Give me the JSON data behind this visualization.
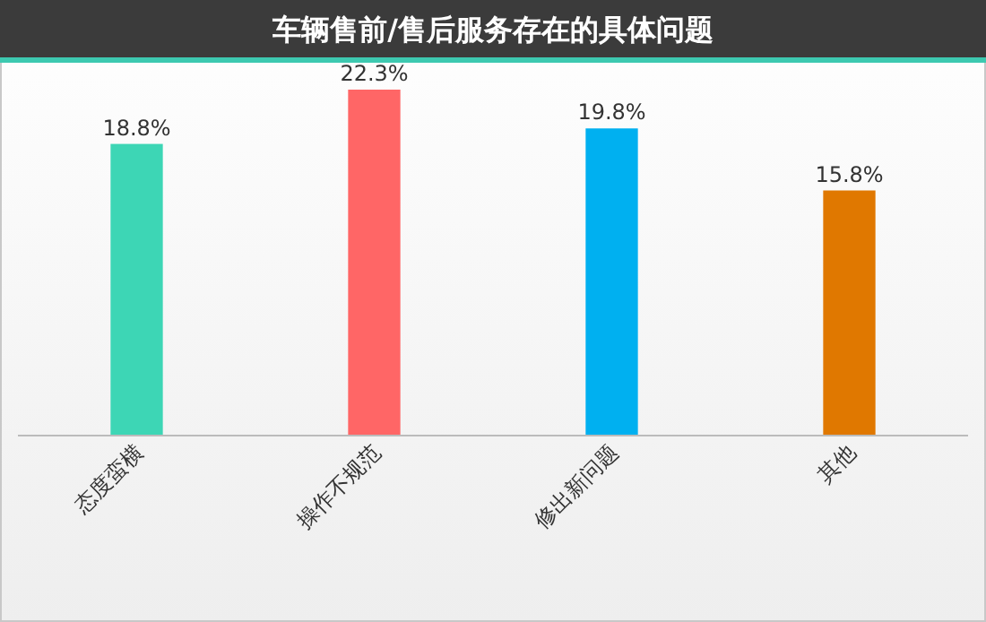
{
  "chart_data": {
    "type": "bar",
    "title": "车辆售前/售后服务存在的具体问题",
    "categories": [
      "态度蛮横",
      "操作不规范",
      "修出新问题",
      "其他"
    ],
    "values": [
      18.8,
      22.3,
      19.8,
      15.8
    ],
    "colors": [
      "#3dd6b5",
      "#ff6666",
      "#00b0f0",
      "#e07800"
    ],
    "value_labels": [
      "18.8%",
      "22.3%",
      "19.8%",
      "15.8%"
    ]
  }
}
